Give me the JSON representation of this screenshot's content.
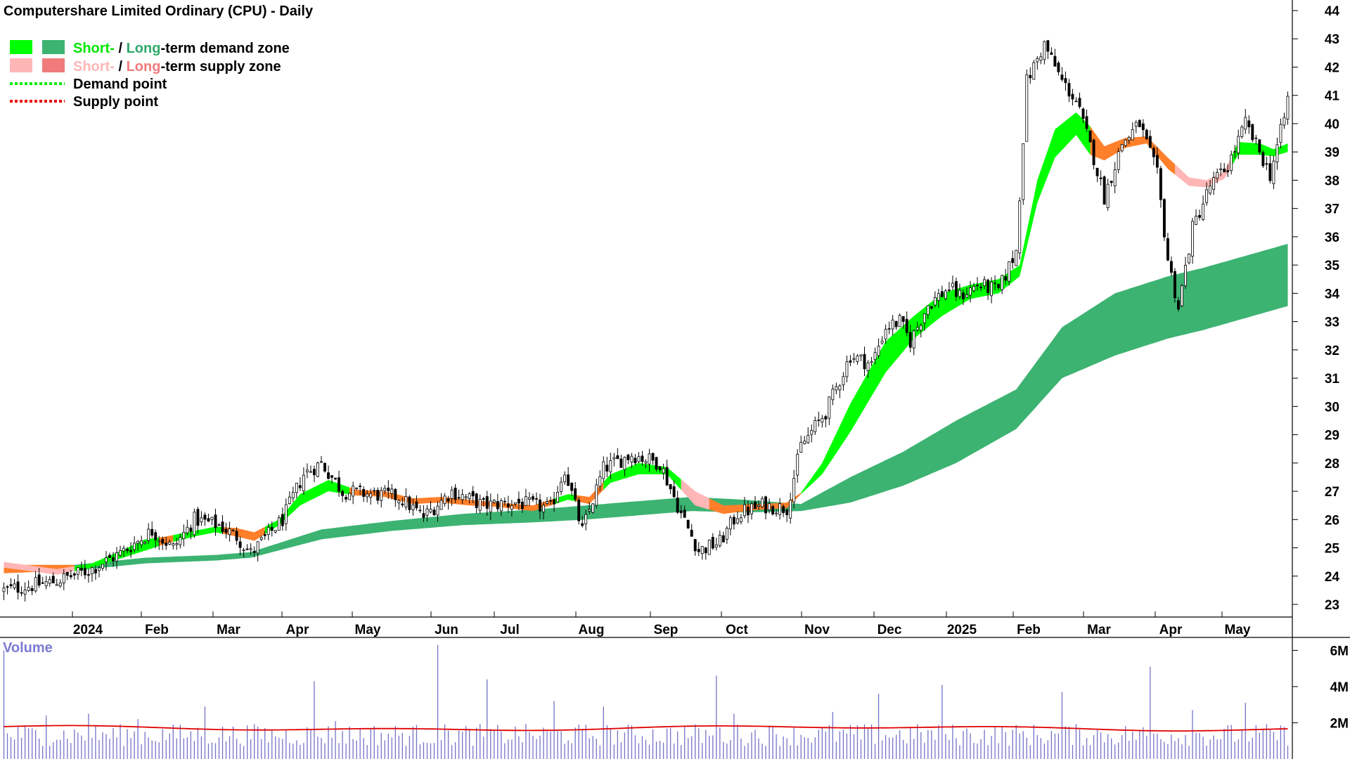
{
  "chart_data": {
    "type": "candlestick",
    "title": "Computershare Limited Ordinary (CPU) - Daily",
    "legend": {
      "items": [
        {
          "parts": [
            {
              "text": "Short-",
              "color": "#00e600"
            },
            {
              "text": " / ",
              "color": "#000000"
            },
            {
              "text": "Long",
              "color": "#2ea86a"
            },
            {
              "text": "-term demand zone",
              "color": "#000000"
            }
          ],
          "swatches": [
            "#00ff00",
            "#3cb371"
          ]
        },
        {
          "parts": [
            {
              "text": "Short-",
              "color": "#ffb6b6"
            },
            {
              "text": " / ",
              "color": "#000000"
            },
            {
              "text": "Long",
              "color": "#f07b7b"
            },
            {
              "text": "-term supply zone",
              "color": "#000000"
            }
          ],
          "swatches": [
            "#ffb6b6",
            "#f07b7b"
          ]
        },
        {
          "parts": [
            {
              "text": "Demand point",
              "color": "#000000"
            }
          ],
          "line_color": "#00ee00"
        },
        {
          "parts": [
            {
              "text": "Supply point",
              "color": "#000000"
            }
          ],
          "line_color": "#ee0000"
        }
      ],
      "placement": "top-left"
    },
    "x_ticks": [
      "2024",
      "Feb",
      "Mar",
      "Apr",
      "May",
      "Jun",
      "Jul",
      "Aug",
      "Sep",
      "Oct",
      "Nov",
      "Dec",
      "2025",
      "Feb",
      "Mar",
      "Apr",
      "May"
    ],
    "y_ticks": [
      23,
      24,
      25,
      26,
      27,
      28,
      29,
      30,
      31,
      32,
      33,
      34,
      35,
      36,
      37,
      38,
      39,
      40,
      41,
      42,
      43,
      44
    ],
    "ylim": [
      22.2,
      44.3
    ],
    "y_axis_side": "right",
    "price_anchors": [
      [
        0,
        23.5
      ],
      [
        14,
        23.8
      ],
      [
        24,
        24.2
      ],
      [
        33,
        24.8
      ],
      [
        42,
        25.6
      ],
      [
        48,
        25.0
      ],
      [
        54,
        26.0
      ],
      [
        61,
        25.8
      ],
      [
        66,
        25.4
      ],
      [
        70,
        24.8
      ],
      [
        79,
        26.0
      ],
      [
        85,
        27.6
      ],
      [
        90,
        28.0
      ],
      [
        96,
        27.0
      ],
      [
        104,
        26.9
      ],
      [
        112,
        26.8
      ],
      [
        119,
        26.1
      ],
      [
        127,
        27.0
      ],
      [
        136,
        26.5
      ],
      [
        145,
        26.6
      ],
      [
        155,
        26.4
      ],
      [
        159,
        27.8
      ],
      [
        164,
        25.6
      ],
      [
        170,
        27.8
      ],
      [
        178,
        28.3
      ],
      [
        186,
        28.0
      ],
      [
        192,
        26.2
      ],
      [
        197,
        24.9
      ],
      [
        203,
        25.2
      ],
      [
        208,
        26.2
      ],
      [
        215,
        26.5
      ],
      [
        222,
        26.4
      ],
      [
        226,
        28.6
      ],
      [
        233,
        29.8
      ],
      [
        240,
        31.8
      ],
      [
        246,
        31.5
      ],
      [
        250,
        32.8
      ],
      [
        254,
        33.0
      ],
      [
        257,
        32.3
      ],
      [
        262,
        33.6
      ],
      [
        268,
        34.2
      ],
      [
        271,
        33.9
      ],
      [
        276,
        34.3
      ],
      [
        282,
        34.1
      ],
      [
        287,
        35.5
      ],
      [
        290,
        41.5
      ],
      [
        295,
        42.8
      ],
      [
        300,
        41.5
      ],
      [
        304,
        40.8
      ],
      [
        309,
        38.8
      ],
      [
        312,
        37.4
      ],
      [
        317,
        39.3
      ],
      [
        322,
        40.0
      ],
      [
        327,
        38.2
      ],
      [
        330,
        35.2
      ],
      [
        333,
        33.5
      ],
      [
        337,
        36.3
      ],
      [
        342,
        37.8
      ],
      [
        347,
        38.5
      ],
      [
        352,
        40.0
      ],
      [
        356,
        39.0
      ],
      [
        359,
        38.2
      ],
      [
        363,
        40.2
      ],
      [
        364,
        40.9
      ]
    ],
    "short_zone_anchors": [
      [
        0,
        24.3,
        24.5
      ],
      [
        15,
        24.05,
        24.25
      ],
      [
        25,
        24.3,
        24.45
      ],
      [
        35,
        24.7,
        25.0
      ],
      [
        40,
        24.9,
        25.3
      ],
      [
        46,
        25.15,
        25.4
      ],
      [
        54,
        25.4,
        25.6
      ],
      [
        60,
        25.55,
        25.75
      ],
      [
        66,
        25.4,
        25.7
      ],
      [
        71,
        25.25,
        25.55
      ],
      [
        78,
        25.8,
        26.0
      ],
      [
        84,
        26.5,
        26.9
      ],
      [
        92,
        27.0,
        27.4
      ],
      [
        100,
        26.85,
        27.05
      ],
      [
        108,
        26.8,
        27.0
      ],
      [
        116,
        26.55,
        26.75
      ],
      [
        124,
        26.6,
        26.8
      ],
      [
        132,
        26.5,
        26.7
      ],
      [
        140,
        26.45,
        26.6
      ],
      [
        150,
        26.3,
        26.5
      ],
      [
        160,
        26.7,
        26.9
      ],
      [
        166,
        26.55,
        26.8
      ],
      [
        172,
        27.3,
        27.6
      ],
      [
        180,
        27.6,
        28.0
      ],
      [
        188,
        27.6,
        27.85
      ],
      [
        196,
        26.5,
        27.0
      ],
      [
        204,
        26.2,
        26.5
      ],
      [
        214,
        26.35,
        26.55
      ],
      [
        222,
        26.4,
        26.6
      ],
      [
        226,
        26.9,
        26.95
      ],
      [
        232,
        27.6,
        28.0
      ],
      [
        240,
        29.1,
        30.1
      ],
      [
        250,
        31.2,
        32.3
      ],
      [
        258,
        32.4,
        33.2
      ],
      [
        266,
        33.2,
        34.0
      ],
      [
        274,
        33.8,
        34.3
      ],
      [
        282,
        34.0,
        34.5
      ],
      [
        288,
        34.6,
        35.0
      ],
      [
        293,
        37.2,
        38.0
      ],
      [
        298,
        38.8,
        39.8
      ],
      [
        304,
        39.6,
        40.4
      ],
      [
        308,
        38.9,
        39.9
      ],
      [
        312,
        38.7,
        39.2
      ],
      [
        318,
        39.15,
        39.5
      ],
      [
        324,
        39.3,
        39.55
      ],
      [
        330,
        38.4,
        38.8
      ],
      [
        336,
        37.8,
        38.1
      ],
      [
        341,
        37.75,
        38.0
      ],
      [
        346,
        38.05,
        38.3
      ],
      [
        350,
        38.9,
        39.35
      ],
      [
        356,
        38.9,
        39.3
      ],
      [
        360,
        38.85,
        39.1
      ],
      [
        364,
        39.0,
        39.3
      ]
    ],
    "long_zone_anchors": [
      [
        0,
        24.1,
        24.4
      ],
      [
        20,
        24.2,
        24.4
      ],
      [
        40,
        24.45,
        24.65
      ],
      [
        60,
        24.55,
        24.75
      ],
      [
        70,
        24.65,
        24.85
      ],
      [
        90,
        25.3,
        25.65
      ],
      [
        110,
        25.6,
        25.95
      ],
      [
        130,
        25.8,
        26.2
      ],
      [
        150,
        25.9,
        26.35
      ],
      [
        165,
        26.0,
        26.5
      ],
      [
        180,
        26.15,
        26.65
      ],
      [
        195,
        26.3,
        26.8
      ],
      [
        210,
        26.25,
        26.7
      ],
      [
        226,
        26.3,
        26.55
      ],
      [
        240,
        26.6,
        27.5
      ],
      [
        255,
        27.2,
        28.4
      ],
      [
        270,
        28.0,
        29.5
      ],
      [
        287,
        29.2,
        30.6
      ],
      [
        300,
        31.0,
        32.8
      ],
      [
        315,
        31.8,
        34.0
      ],
      [
        330,
        32.4,
        34.6
      ],
      [
        340,
        32.7,
        34.9
      ],
      [
        364,
        33.55,
        35.75
      ]
    ],
    "n_bars": 365,
    "volume": {
      "label": "Volume",
      "y_ticks": [
        "2M",
        "4M",
        "6M"
      ],
      "tick_values": [
        2000000,
        4000000,
        6000000
      ],
      "ylim": [
        0,
        6600000
      ],
      "typical": 1300000,
      "average_level": 1700000,
      "spikes": [
        [
          0,
          6000000
        ],
        [
          12,
          2400000
        ],
        [
          24,
          2500000
        ],
        [
          38,
          2200000
        ],
        [
          57,
          2900000
        ],
        [
          88,
          4300000
        ],
        [
          94,
          2100000
        ],
        [
          123,
          6300000
        ],
        [
          137,
          4400000
        ],
        [
          156,
          3200000
        ],
        [
          170,
          2900000
        ],
        [
          202,
          4600000
        ],
        [
          207,
          2500000
        ],
        [
          235,
          2600000
        ],
        [
          248,
          3600000
        ],
        [
          266,
          4100000
        ],
        [
          300,
          3700000
        ],
        [
          325,
          5100000
        ],
        [
          337,
          2700000
        ],
        [
          352,
          3100000
        ]
      ],
      "spike_color": "#7373c9",
      "avg_color": "#e00000"
    },
    "colors": {
      "candle_up": "#ffffff",
      "candle_down": "#000000",
      "demand_short": "#00ff00",
      "demand_long": "#3cb371",
      "supply_short": "#ffb6b6",
      "supply_long": "#ff7f2a"
    },
    "grid": false
  }
}
